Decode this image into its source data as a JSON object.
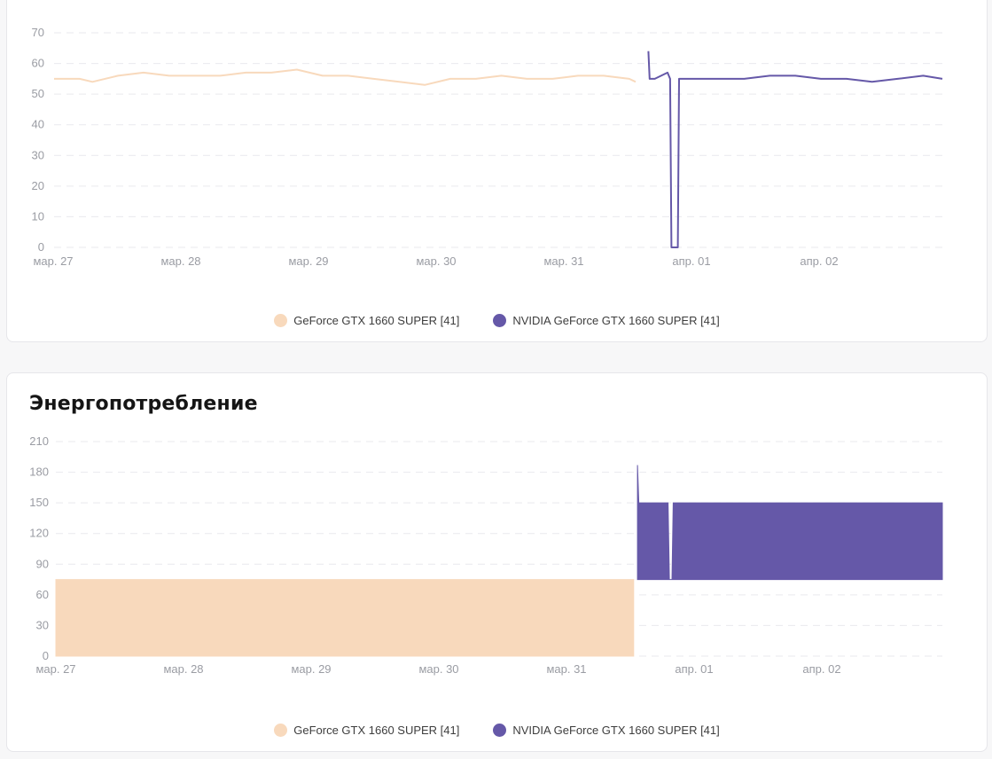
{
  "colors": {
    "series_a": "#f8d9bc",
    "series_b": "#6558a8",
    "grid": "#e9e9ee",
    "axis_text": "#9a9ca3"
  },
  "chart_data": [
    {
      "id": "temperature",
      "type": "line",
      "title": "",
      "ylim": [
        0,
        70
      ],
      "yticks": [
        0,
        10,
        20,
        30,
        40,
        50,
        60,
        70
      ],
      "grid": true,
      "legend_placement": "bottom-center",
      "x_tick_labels": [
        "мар. 27",
        "мар. 28",
        "мар. 29",
        "мар. 30",
        "мар. 31",
        "апр. 01",
        "апр. 02"
      ],
      "x_domain_days": [
        27.0,
        33.95
      ],
      "series": [
        {
          "name": "GeForce GTX 1660 SUPER [41]",
          "x": [
            27.0,
            27.2,
            27.3,
            27.5,
            27.7,
            27.9,
            28.1,
            28.3,
            28.5,
            28.7,
            28.9,
            29.1,
            29.3,
            29.5,
            29.7,
            29.9,
            30.1,
            30.3,
            30.5,
            30.7,
            30.9,
            31.1,
            31.3,
            31.5,
            31.55
          ],
          "y": [
            55,
            55,
            54,
            56,
            57,
            56,
            56,
            56,
            57,
            57,
            58,
            56,
            56,
            55,
            54,
            53,
            55,
            55,
            56,
            55,
            55,
            56,
            56,
            55,
            54
          ]
        },
        {
          "name": "NVIDIA GeForce GTX 1660 SUPER [41]",
          "x": [
            31.65,
            31.66,
            31.7,
            31.75,
            31.8,
            31.82,
            31.83,
            31.88,
            31.89,
            32.0,
            32.2,
            32.4,
            32.6,
            32.8,
            33.0,
            33.2,
            33.4,
            33.6,
            33.8,
            33.95
          ],
          "y": [
            64,
            55,
            55,
            56,
            57,
            55,
            0,
            0,
            55,
            55,
            55,
            55,
            56,
            56,
            55,
            55,
            54,
            55,
            56,
            55
          ]
        }
      ]
    },
    {
      "id": "power",
      "type": "area",
      "title": "Энергопотребление",
      "ylim": [
        0,
        210
      ],
      "yticks": [
        0,
        30,
        60,
        90,
        120,
        150,
        180,
        210
      ],
      "grid": true,
      "legend_placement": "bottom-center",
      "x_tick_labels": [
        "мар. 27",
        "мар. 28",
        "мар. 29",
        "мар. 30",
        "мар. 31",
        "апр. 01",
        "апр. 02"
      ],
      "x_domain_days": [
        27.0,
        33.95
      ],
      "series": [
        {
          "name": "GeForce GTX 1660 SUPER [41]",
          "x": [
            27.0,
            31.53
          ],
          "y": [
            75,
            75
          ]
        },
        {
          "name": "NVIDIA GeForce GTX 1660 SUPER [41]",
          "x": [
            31.56,
            31.57,
            31.8,
            31.81,
            31.83,
            31.84,
            33.95
          ],
          "y_low": [
            75,
            75,
            75,
            75,
            75,
            75,
            75
          ],
          "y_high": [
            187,
            150,
            150,
            75,
            75,
            150,
            150
          ]
        }
      ]
    }
  ]
}
